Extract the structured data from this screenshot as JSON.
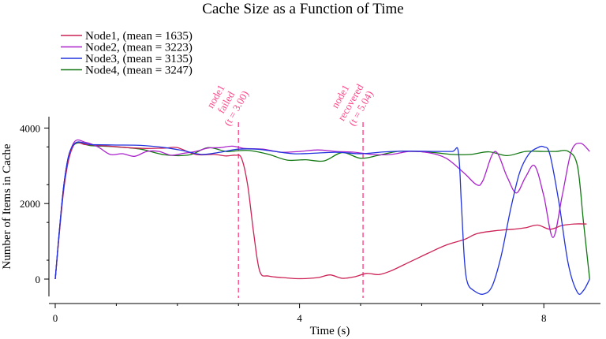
{
  "chart_data": {
    "type": "line",
    "title": "Cache Size as a Function of Time",
    "xlabel": "Time (s)",
    "ylabel": "Number of Items in Cache",
    "xlim": [
      0,
      8.9
    ],
    "ylim": [
      -450,
      4300
    ],
    "xticks": [
      0,
      4,
      8
    ],
    "xticklabels": [
      "0",
      "4",
      "8"
    ],
    "yticks": [
      0,
      2000,
      4000
    ],
    "yticklabels": [
      "0",
      "2000",
      "4000"
    ],
    "grid": false,
    "legend": "top-left",
    "series": [
      {
        "name": "Node1, (mean = 1635)",
        "color": "#cc2255",
        "x": [
          0.0,
          0.15,
          0.3,
          0.5,
          0.8,
          1.2,
          1.5,
          1.8,
          2.0,
          2.3,
          2.6,
          2.8,
          2.95,
          3.05,
          3.15,
          3.25,
          3.35,
          3.5,
          3.8,
          4.0,
          4.3,
          4.5,
          4.7,
          4.9,
          5.1,
          5.3,
          5.5,
          5.8,
          6.1,
          6.4,
          6.7,
          6.9,
          7.2,
          7.5,
          7.7,
          7.9,
          8.1,
          8.3,
          8.5,
          8.7
        ],
        "y": [
          0,
          2500,
          3540,
          3560,
          3530,
          3480,
          3460,
          3470,
          3480,
          3300,
          3300,
          3260,
          3280,
          3200,
          2500,
          1200,
          200,
          80,
          30,
          10,
          40,
          110,
          20,
          60,
          150,
          120,
          220,
          450,
          680,
          900,
          1050,
          1200,
          1280,
          1320,
          1360,
          1430,
          1320,
          1420,
          1460,
          1460
        ]
      },
      {
        "name": "Node2, (mean = 3223)",
        "color": "#aa22cc",
        "x": [
          0.0,
          0.15,
          0.3,
          0.5,
          0.7,
          0.9,
          1.1,
          1.3,
          1.5,
          1.7,
          1.9,
          2.1,
          2.3,
          2.5,
          2.7,
          2.9,
          3.1,
          3.4,
          3.7,
          4.0,
          4.3,
          4.6,
          4.9,
          5.2,
          5.5,
          5.8,
          6.1,
          6.4,
          6.7,
          6.9,
          7.0,
          7.2,
          7.4,
          7.55,
          7.7,
          7.85,
          8.0,
          8.15,
          8.3,
          8.45,
          8.6,
          8.75
        ],
        "y": [
          0,
          2600,
          3600,
          3620,
          3500,
          3300,
          3320,
          3250,
          3380,
          3380,
          3280,
          3330,
          3380,
          3470,
          3480,
          3520,
          3460,
          3440,
          3360,
          3380,
          3420,
          3380,
          3360,
          3300,
          3300,
          3380,
          3350,
          3200,
          2800,
          2500,
          2600,
          3380,
          2700,
          2280,
          2700,
          3000,
          2200,
          1100,
          2200,
          3380,
          3600,
          3380
        ]
      },
      {
        "name": "Node3, (mean = 3135)",
        "color": "#2233dd",
        "x": [
          0.0,
          0.15,
          0.3,
          0.6,
          1.0,
          1.4,
          1.8,
          2.1,
          2.4,
          2.7,
          3.0,
          3.3,
          3.6,
          3.9,
          4.2,
          4.6,
          5.0,
          5.4,
          5.8,
          6.2,
          6.5,
          6.6,
          6.65,
          6.7,
          6.75,
          6.85,
          7.0,
          7.15,
          7.3,
          7.45,
          7.6,
          7.75,
          7.9,
          8.0,
          8.1,
          8.25,
          8.4,
          8.55,
          8.65,
          8.75
        ],
        "y": [
          0,
          2600,
          3560,
          3560,
          3550,
          3540,
          3480,
          3400,
          3300,
          3360,
          3440,
          3440,
          3380,
          3320,
          3330,
          3360,
          3320,
          3370,
          3390,
          3380,
          3380,
          3380,
          2000,
          500,
          -100,
          -300,
          -400,
          -200,
          600,
          1800,
          2800,
          3300,
          3480,
          3500,
          3300,
          2000,
          400,
          -350,
          -300,
          0
        ]
      },
      {
        "name": "Node4, (mean = 3247)",
        "color": "#117711",
        "x": [
          0.0,
          0.15,
          0.3,
          0.6,
          1.0,
          1.4,
          1.8,
          2.2,
          2.5,
          2.8,
          3.0,
          3.2,
          3.5,
          3.8,
          4.1,
          4.4,
          4.7,
          5.0,
          5.3,
          5.6,
          5.9,
          6.2,
          6.5,
          6.8,
          7.1,
          7.4,
          7.7,
          8.0,
          8.2,
          8.4,
          8.55,
          8.65,
          8.75
        ],
        "y": [
          0,
          2600,
          3540,
          3530,
          3500,
          3440,
          3290,
          3290,
          3480,
          3380,
          3400,
          3400,
          3300,
          3150,
          3160,
          3130,
          3350,
          3200,
          3280,
          3380,
          3380,
          3350,
          3300,
          3300,
          3370,
          3270,
          3380,
          3380,
          3380,
          3380,
          3000,
          1500,
          0
        ]
      }
    ],
    "annotations": [
      {
        "x": 3.0,
        "lines": [
          "node1",
          "failed",
          "(t = 3.00)"
        ],
        "color": "#ff4488"
      },
      {
        "x": 5.04,
        "lines": [
          "node1",
          "recovered",
          "(t = 5.04)"
        ],
        "color": "#ff4488"
      }
    ]
  }
}
